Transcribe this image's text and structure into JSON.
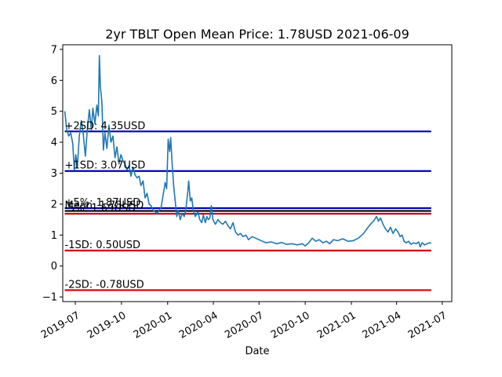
{
  "chart_data": {
    "type": "line",
    "title": "2yr TBLT Open Mean Price: 1.78USD 2021-06-09",
    "xlabel": "Date",
    "ylabel": "",
    "xlim": [
      "2019-06-06",
      "2021-07-20"
    ],
    "ylim": [
      -1.15,
      7.15
    ],
    "y_ticks": [
      -1,
      0,
      1,
      2,
      3,
      4,
      5,
      6,
      7
    ],
    "x_ticks": [
      {
        "date": "2019-07-01",
        "label": "2019-07"
      },
      {
        "date": "2019-10-01",
        "label": "2019-10"
      },
      {
        "date": "2020-01-01",
        "label": "2020-01"
      },
      {
        "date": "2020-04-01",
        "label": "2020-04"
      },
      {
        "date": "2020-07-01",
        "label": "2020-07"
      },
      {
        "date": "2020-10-01",
        "label": "2020-10"
      },
      {
        "date": "2021-01-01",
        "label": "2021-01"
      },
      {
        "date": "2021-04-01",
        "label": "2021-04"
      },
      {
        "date": "2021-07-01",
        "label": "2021-07"
      }
    ],
    "grid": false,
    "series": [
      {
        "color": "#1f77b4",
        "points": [
          [
            "2019-06-10",
            5.0
          ],
          [
            "2019-06-14",
            4.4
          ],
          [
            "2019-06-18",
            4.2
          ],
          [
            "2019-06-22",
            4.3
          ],
          [
            "2019-06-26",
            3.95
          ],
          [
            "2019-06-29",
            3.1
          ],
          [
            "2019-07-02",
            3.6
          ],
          [
            "2019-07-05",
            3.2
          ],
          [
            "2019-07-09",
            4.2
          ],
          [
            "2019-07-13",
            4.7
          ],
          [
            "2019-07-17",
            4.25
          ],
          [
            "2019-07-21",
            3.55
          ],
          [
            "2019-07-25",
            4.45
          ],
          [
            "2019-07-29",
            5.05
          ],
          [
            "2019-08-02",
            4.4
          ],
          [
            "2019-08-05",
            5.1
          ],
          [
            "2019-08-09",
            4.6
          ],
          [
            "2019-08-13",
            5.2
          ],
          [
            "2019-08-16",
            4.85
          ],
          [
            "2019-08-18",
            6.8
          ],
          [
            "2019-08-20",
            5.8
          ],
          [
            "2019-08-23",
            5.3
          ],
          [
            "2019-08-26",
            3.75
          ],
          [
            "2019-08-29",
            4.3
          ],
          [
            "2019-09-02",
            3.8
          ],
          [
            "2019-09-06",
            4.55
          ],
          [
            "2019-09-10",
            4.0
          ],
          [
            "2019-09-14",
            4.2
          ],
          [
            "2019-09-18",
            3.5
          ],
          [
            "2019-09-22",
            3.85
          ],
          [
            "2019-09-26",
            3.3
          ],
          [
            "2019-09-30",
            3.6
          ],
          [
            "2019-10-04",
            3.4
          ],
          [
            "2019-10-08",
            3.3
          ],
          [
            "2019-10-12",
            3.1
          ],
          [
            "2019-10-16",
            3.25
          ],
          [
            "2019-10-20",
            2.9
          ],
          [
            "2019-10-24",
            3.2
          ],
          [
            "2019-10-28",
            2.95
          ],
          [
            "2019-11-01",
            2.85
          ],
          [
            "2019-11-05",
            2.9
          ],
          [
            "2019-11-09",
            2.6
          ],
          [
            "2019-11-13",
            2.75
          ],
          [
            "2019-11-17",
            2.2
          ],
          [
            "2019-11-21",
            2.35
          ],
          [
            "2019-11-25",
            2.0
          ],
          [
            "2019-11-29",
            1.95
          ],
          [
            "2019-12-03",
            1.8
          ],
          [
            "2019-12-07",
            1.75
          ],
          [
            "2019-12-11",
            1.7
          ],
          [
            "2019-12-15",
            1.8
          ],
          [
            "2019-12-19",
            1.9
          ],
          [
            "2019-12-23",
            2.3
          ],
          [
            "2019-12-27",
            2.7
          ],
          [
            "2019-12-30",
            2.5
          ],
          [
            "2020-01-02",
            4.1
          ],
          [
            "2020-01-05",
            3.7
          ],
          [
            "2020-01-07",
            4.15
          ],
          [
            "2020-01-10",
            3.3
          ],
          [
            "2020-01-13",
            2.6
          ],
          [
            "2020-01-16",
            2.1
          ],
          [
            "2020-01-19",
            1.6
          ],
          [
            "2020-01-22",
            1.8
          ],
          [
            "2020-01-26",
            1.5
          ],
          [
            "2020-01-30",
            1.7
          ],
          [
            "2020-02-03",
            1.6
          ],
          [
            "2020-02-06",
            1.8
          ],
          [
            "2020-02-10",
            2.4
          ],
          [
            "2020-02-12",
            2.75
          ],
          [
            "2020-02-15",
            2.1
          ],
          [
            "2020-02-18",
            2.2
          ],
          [
            "2020-02-21",
            1.8
          ],
          [
            "2020-02-25",
            1.6
          ],
          [
            "2020-03-01",
            1.75
          ],
          [
            "2020-03-05",
            1.5
          ],
          [
            "2020-03-09",
            1.4
          ],
          [
            "2020-03-12",
            1.65
          ],
          [
            "2020-03-16",
            1.4
          ],
          [
            "2020-03-19",
            1.6
          ],
          [
            "2020-03-22",
            1.5
          ],
          [
            "2020-03-25",
            1.55
          ],
          [
            "2020-03-28",
            1.95
          ],
          [
            "2020-03-31",
            1.5
          ],
          [
            "2020-04-05",
            1.35
          ],
          [
            "2020-04-10",
            1.5
          ],
          [
            "2020-04-15",
            1.4
          ],
          [
            "2020-04-20",
            1.35
          ],
          [
            "2020-04-25",
            1.45
          ],
          [
            "2020-04-30",
            1.3
          ],
          [
            "2020-05-05",
            1.2
          ],
          [
            "2020-05-10",
            1.4
          ],
          [
            "2020-05-15",
            1.1
          ],
          [
            "2020-05-20",
            1.0
          ],
          [
            "2020-05-25",
            1.05
          ],
          [
            "2020-05-30",
            0.95
          ],
          [
            "2020-06-05",
            1.0
          ],
          [
            "2020-06-10",
            0.85
          ],
          [
            "2020-06-17",
            0.95
          ],
          [
            "2020-06-24",
            0.9
          ],
          [
            "2020-07-01",
            0.85
          ],
          [
            "2020-07-08",
            0.8
          ],
          [
            "2020-07-15",
            0.75
          ],
          [
            "2020-07-25",
            0.78
          ],
          [
            "2020-08-05",
            0.72
          ],
          [
            "2020-08-15",
            0.76
          ],
          [
            "2020-08-25",
            0.7
          ],
          [
            "2020-09-05",
            0.72
          ],
          [
            "2020-09-15",
            0.68
          ],
          [
            "2020-09-25",
            0.72
          ],
          [
            "2020-10-01",
            0.65
          ],
          [
            "2020-10-08",
            0.75
          ],
          [
            "2020-10-15",
            0.9
          ],
          [
            "2020-10-22",
            0.8
          ],
          [
            "2020-10-29",
            0.85
          ],
          [
            "2020-11-05",
            0.75
          ],
          [
            "2020-11-12",
            0.8
          ],
          [
            "2020-11-19",
            0.72
          ],
          [
            "2020-11-26",
            0.85
          ],
          [
            "2020-12-05",
            0.82
          ],
          [
            "2020-12-15",
            0.88
          ],
          [
            "2020-12-25",
            0.8
          ],
          [
            "2021-01-05",
            0.82
          ],
          [
            "2021-01-15",
            0.9
          ],
          [
            "2021-01-25",
            1.05
          ],
          [
            "2021-02-01",
            1.2
          ],
          [
            "2021-02-08",
            1.35
          ],
          [
            "2021-02-14",
            1.45
          ],
          [
            "2021-02-20",
            1.6
          ],
          [
            "2021-02-24",
            1.45
          ],
          [
            "2021-02-28",
            1.55
          ],
          [
            "2021-03-05",
            1.35
          ],
          [
            "2021-03-10",
            1.2
          ],
          [
            "2021-03-15",
            1.1
          ],
          [
            "2021-03-20",
            1.25
          ],
          [
            "2021-03-25",
            1.05
          ],
          [
            "2021-03-30",
            1.2
          ],
          [
            "2021-04-04",
            1.1
          ],
          [
            "2021-04-08",
            0.95
          ],
          [
            "2021-04-12",
            1.0
          ],
          [
            "2021-04-16",
            0.8
          ],
          [
            "2021-04-20",
            0.75
          ],
          [
            "2021-04-25",
            0.8
          ],
          [
            "2021-04-30",
            0.7
          ],
          [
            "2021-05-05",
            0.75
          ],
          [
            "2021-05-10",
            0.72
          ],
          [
            "2021-05-15",
            0.78
          ],
          [
            "2021-05-18",
            0.62
          ],
          [
            "2021-05-22",
            0.75
          ],
          [
            "2021-05-27",
            0.68
          ],
          [
            "2021-06-01",
            0.72
          ],
          [
            "2021-06-05",
            0.75
          ],
          [
            "2021-06-09",
            0.74
          ]
        ]
      }
    ],
    "hlines": [
      {
        "value": 4.35,
        "label": "+2SD: 4.35USD",
        "color": "#0000bb"
      },
      {
        "value": 3.07,
        "label": "+1SD: 3.07USD",
        "color": "#0000bb"
      },
      {
        "value": 1.87,
        "label": "+5%: 1.87USD",
        "color": "#0000bb"
      },
      {
        "value": 1.78,
        "label": "Mean: 1.78USD",
        "color": "#000000"
      },
      {
        "value": 1.69,
        "label": "-5%: 1.69USD",
        "color": "#cc0000"
      },
      {
        "value": 0.5,
        "label": "-1SD: 0.50USD",
        "color": "#cc0000"
      },
      {
        "value": -0.78,
        "label": "-2SD: -0.78USD",
        "color": "#cc0000"
      }
    ]
  }
}
